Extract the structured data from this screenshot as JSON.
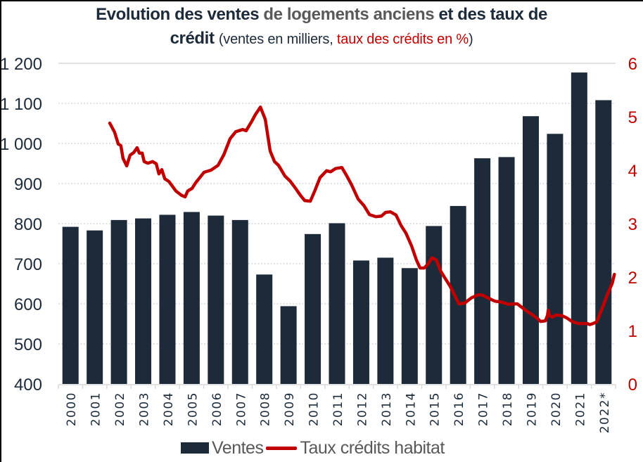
{
  "title": {
    "part1": "Evolution des ventes",
    "part2": "de logements anciens",
    "part3": "et des taux de",
    "part4": "crédit",
    "sub_open": "(ventes en milliers,",
    "sub_red": "taux des crédits en %",
    "sub_close": ")"
  },
  "colors": {
    "bars": "#1c2a3a",
    "line": "#c00000",
    "title_dark": "#1c2a3a",
    "title_gray": "#595959",
    "grid": "#d0d0d0",
    "left_axis_text": "#1c2a3a",
    "right_axis_text": "#c00000"
  },
  "chart_data": {
    "type": "bar+line",
    "title": "Evolution des ventes de logements anciens et des taux de crédit (ventes en milliers, taux des crédits en %)",
    "categories": [
      "2000",
      "2001",
      "2002",
      "2003",
      "2004",
      "2005",
      "2006",
      "2007",
      "2008",
      "2009",
      "2010",
      "2011",
      "2012",
      "2013",
      "2014",
      "2015",
      "2016",
      "2017",
      "2018",
      "2019",
      "2020",
      "2021",
      "2022*"
    ],
    "y_left": {
      "range": [
        400,
        1200
      ],
      "ticks": [
        400,
        500,
        600,
        700,
        800,
        900,
        1000,
        1100,
        1200
      ],
      "tick_labels": [
        "400",
        "500",
        "600",
        "700",
        "800",
        "900",
        "1 000",
        "1 100",
        "1 200"
      ]
    },
    "y_right": {
      "range": [
        0,
        6
      ],
      "ticks": [
        0,
        1,
        2,
        3,
        4,
        5,
        6
      ],
      "tick_labels": [
        "0",
        "1",
        "2",
        "3",
        "4",
        "5",
        "6"
      ]
    },
    "grid": true,
    "legend_position": "bottom",
    "series": [
      {
        "name": "Ventes",
        "type": "bar",
        "axis": "left",
        "values": [
          792,
          783,
          809,
          813,
          822,
          829,
          820,
          809,
          673,
          594,
          774,
          801,
          708,
          715,
          689,
          794,
          844,
          963,
          966,
          1068,
          1024,
          1177,
          1108
        ]
      },
      {
        "name": "Taux crédits habitat",
        "type": "line",
        "axis": "right",
        "x_unit": "year (2000 = left edge of 2000 category, 2023 = right edge of 2022* category)",
        "points": [
          [
            2002.12,
            4.88
          ],
          [
            2002.32,
            4.71
          ],
          [
            2002.47,
            4.49
          ],
          [
            2002.58,
            4.46
          ],
          [
            2002.67,
            4.22
          ],
          [
            2002.82,
            4.08
          ],
          [
            2002.96,
            4.28
          ],
          [
            2003.11,
            4.33
          ],
          [
            2003.25,
            4.42
          ],
          [
            2003.34,
            4.32
          ],
          [
            2003.46,
            4.32
          ],
          [
            2003.54,
            4.16
          ],
          [
            2003.69,
            4.13
          ],
          [
            2003.89,
            4.16
          ],
          [
            2004.04,
            4.12
          ],
          [
            2004.15,
            3.93
          ],
          [
            2004.27,
            4.01
          ],
          [
            2004.39,
            3.84
          ],
          [
            2004.56,
            3.79
          ],
          [
            2004.85,
            3.61
          ],
          [
            2005.08,
            3.53
          ],
          [
            2005.23,
            3.5
          ],
          [
            2005.34,
            3.61
          ],
          [
            2005.52,
            3.66
          ],
          [
            2005.66,
            3.76
          ],
          [
            2006.01,
            3.96
          ],
          [
            2006.3,
            4.0
          ],
          [
            2006.59,
            4.09
          ],
          [
            2006.83,
            4.29
          ],
          [
            2007.09,
            4.59
          ],
          [
            2007.32,
            4.72
          ],
          [
            2007.61,
            4.76
          ],
          [
            2007.75,
            4.74
          ],
          [
            2007.99,
            4.92
          ],
          [
            2008.13,
            5.04
          ],
          [
            2008.34,
            5.18
          ],
          [
            2008.54,
            4.95
          ],
          [
            2008.74,
            4.36
          ],
          [
            2008.92,
            4.16
          ],
          [
            2009.09,
            4.09
          ],
          [
            2009.35,
            3.89
          ],
          [
            2009.56,
            3.8
          ],
          [
            2009.79,
            3.66
          ],
          [
            2009.99,
            3.53
          ],
          [
            2010.17,
            3.43
          ],
          [
            2010.4,
            3.42
          ],
          [
            2010.6,
            3.63
          ],
          [
            2010.8,
            3.86
          ],
          [
            2011.07,
            3.99
          ],
          [
            2011.24,
            3.97
          ],
          [
            2011.44,
            4.03
          ],
          [
            2011.7,
            4.05
          ],
          [
            2011.91,
            3.89
          ],
          [
            2012.11,
            3.72
          ],
          [
            2012.37,
            3.46
          ],
          [
            2012.61,
            3.34
          ],
          [
            2012.84,
            3.17
          ],
          [
            2013.1,
            3.13
          ],
          [
            2013.33,
            3.14
          ],
          [
            2013.51,
            3.21
          ],
          [
            2013.71,
            3.22
          ],
          [
            2013.94,
            3.16
          ],
          [
            2014.14,
            2.97
          ],
          [
            2014.35,
            2.82
          ],
          [
            2014.58,
            2.58
          ],
          [
            2014.78,
            2.32
          ],
          [
            2014.93,
            2.17
          ],
          [
            2015.1,
            2.17
          ],
          [
            2015.25,
            2.24
          ],
          [
            2015.42,
            2.36
          ],
          [
            2015.6,
            2.32
          ],
          [
            2015.77,
            2.12
          ],
          [
            2016.18,
            1.82
          ],
          [
            2016.53,
            1.5
          ],
          [
            2016.76,
            1.51
          ],
          [
            2017.05,
            1.61
          ],
          [
            2017.34,
            1.67
          ],
          [
            2017.51,
            1.66
          ],
          [
            2017.72,
            1.61
          ],
          [
            2018.01,
            1.55
          ],
          [
            2018.3,
            1.53
          ],
          [
            2018.59,
            1.49
          ],
          [
            2018.94,
            1.5
          ],
          [
            2019.14,
            1.43
          ],
          [
            2019.31,
            1.37
          ],
          [
            2019.58,
            1.29
          ],
          [
            2019.81,
            1.21
          ],
          [
            2019.9,
            1.17
          ],
          [
            2020.1,
            1.18
          ],
          [
            2020.19,
            1.28
          ],
          [
            2020.22,
            1.38
          ],
          [
            2020.27,
            1.28
          ],
          [
            2020.39,
            1.25
          ],
          [
            2020.53,
            1.29
          ],
          [
            2020.77,
            1.28
          ],
          [
            2020.97,
            1.24
          ],
          [
            2021.2,
            1.17
          ],
          [
            2021.46,
            1.13
          ],
          [
            2021.84,
            1.13
          ],
          [
            2021.93,
            1.11
          ],
          [
            2022.07,
            1.13
          ],
          [
            2022.22,
            1.16
          ],
          [
            2022.42,
            1.38
          ],
          [
            2022.65,
            1.66
          ],
          [
            2022.86,
            1.88
          ],
          [
            2022.95,
            2.05
          ]
        ]
      }
    ]
  },
  "legend": {
    "bars_label": "Ventes",
    "line_label": "Taux crédits habitat"
  }
}
